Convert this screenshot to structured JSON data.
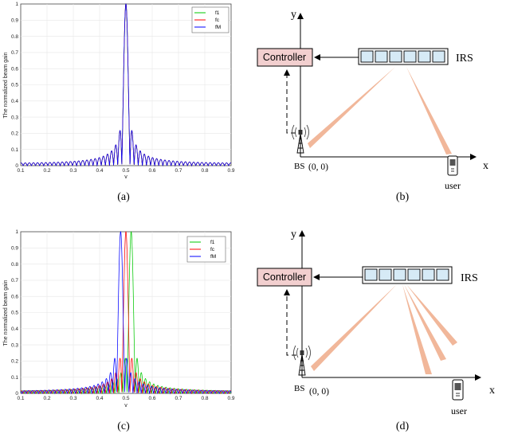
{
  "colors": {
    "series_f1": "#00c800",
    "series_fc": "#ff0000",
    "series_fM": "#0000ff",
    "grid": "#e6e6e6",
    "controller_fill": "#f2cfcf",
    "irs_cell_fill": "#d6eaf6",
    "beam_fill": "#f1b79a"
  },
  "chart_data": [
    {
      "type": "line",
      "panel": "(a)",
      "xlabel": "v",
      "ylabel": "The normalized beam gain",
      "xlim": [
        0.1,
        0.9
      ],
      "ylim": [
        0,
        1
      ],
      "xticks": [
        "0.1",
        "0.2",
        "0.3",
        "0.4",
        "0.5",
        "0.6",
        "0.7",
        "0.8",
        "0.9"
      ],
      "yticks": [
        "0",
        "0.1",
        "0.2",
        "0.3",
        "0.4",
        "0.5",
        "0.6",
        "0.7",
        "0.8",
        "0.9",
        "1"
      ],
      "grid": true,
      "legend_position": "top-right",
      "series": [
        {
          "name": "f1",
          "peak_v": 0.5
        },
        {
          "name": "fc",
          "peak_v": 0.5
        },
        {
          "name": "fM",
          "peak_v": 0.5
        }
      ]
    },
    {
      "type": "line",
      "panel": "(c)",
      "xlabel": "v",
      "ylabel": "The normalized beam gain",
      "xlim": [
        0.1,
        0.9
      ],
      "ylim": [
        0,
        1
      ],
      "xticks": [
        "0.1",
        "0.2",
        "0.3",
        "0.4",
        "0.5",
        "0.6",
        "0.7",
        "0.8",
        "0.9"
      ],
      "yticks": [
        "0",
        "0.1",
        "0.2",
        "0.3",
        "0.4",
        "0.5",
        "0.6",
        "0.7",
        "0.8",
        "0.9",
        "1"
      ],
      "grid": true,
      "legend_position": "top-right",
      "series": [
        {
          "name": "f1",
          "peak_v": 0.52
        },
        {
          "name": "fc",
          "peak_v": 0.5
        },
        {
          "name": "fM",
          "peak_v": 0.48
        }
      ]
    }
  ],
  "captions": {
    "a": "(a)",
    "b": "(b)",
    "c": "(c)",
    "d": "(d)"
  },
  "diagram_b": {
    "controller_label": "Controller",
    "irs_label": "IRS",
    "axis_y": "y",
    "axis_x": "x",
    "bs_label": "BS",
    "origin_label": "(0, 0)",
    "user_label": "user",
    "irs_cells": 6,
    "beams": 2
  },
  "diagram_d": {
    "controller_label": "Controller",
    "irs_label": "IRS",
    "axis_y": "y",
    "axis_x": "x",
    "bs_label": "BS",
    "origin_label": "(0, 0)",
    "user_label": "user",
    "irs_cells": 6,
    "beams": 4
  }
}
